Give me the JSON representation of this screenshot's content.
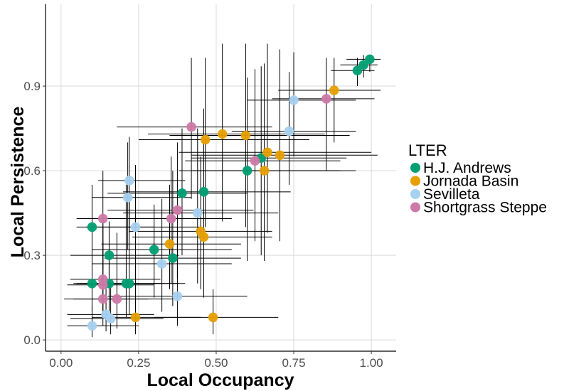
{
  "chart_data": {
    "type": "scatter",
    "xlabel": "Local Occupancy",
    "ylabel": "Local Persistence",
    "xlim": [
      -0.05,
      1.08
    ],
    "ylim": [
      -0.04,
      1.19
    ],
    "x_ticks": [
      0,
      0.25,
      0.5,
      0.75,
      1.0
    ],
    "x_tick_labels": [
      "0.00",
      "0.25",
      "0.50",
      "0.75",
      "1.00"
    ],
    "y_ticks": [
      0,
      0.3,
      0.6,
      0.9
    ],
    "y_tick_labels": [
      "0.0",
      "0.3",
      "0.6",
      "0.9"
    ],
    "grid": true,
    "legend": {
      "title": "LTER",
      "position": "right"
    },
    "series": [
      {
        "name": "H.J. Andrews",
        "color": "#009E73",
        "points": [
          {
            "x": 0.1,
            "y": 0.4,
            "xerr": [
              0.08,
              0.3
            ],
            "yerr": [
              0.3,
              0.55
            ]
          },
          {
            "x": 0.1,
            "y": 0.2,
            "xerr": [
              0.05,
              0.25
            ],
            "yerr": [
              0.1,
              0.3
            ]
          },
          {
            "x": 0.155,
            "y": 0.3,
            "xerr": [
              0.03,
              0.38
            ],
            "yerr": [
              0.2,
              0.42
            ]
          },
          {
            "x": 0.155,
            "y": 0.2,
            "xerr": [
              0.04,
              0.32
            ],
            "yerr": [
              0.1,
              0.32
            ]
          },
          {
            "x": 0.21,
            "y": 0.2,
            "xerr": [
              0.05,
              0.4
            ],
            "yerr": [
              0.08,
              0.55
            ]
          },
          {
            "x": 0.22,
            "y": 0.2,
            "xerr": [
              0.06,
              0.38
            ],
            "yerr": [
              0.09,
              0.52
            ]
          },
          {
            "x": 0.3,
            "y": 0.32,
            "xerr": [
              0.1,
              0.55
            ],
            "yerr": [
              0.15,
              0.48
            ]
          },
          {
            "x": 0.36,
            "y": 0.29,
            "xerr": [
              0.14,
              0.58
            ],
            "yerr": [
              0.12,
              0.6
            ]
          },
          {
            "x": 0.39,
            "y": 0.52,
            "xerr": [
              0.15,
              0.6
            ],
            "yerr": [
              0.3,
              0.75
            ]
          },
          {
            "x": 0.46,
            "y": 0.525,
            "xerr": [
              0.2,
              0.74
            ],
            "yerr": [
              0.18,
              0.82
            ]
          },
          {
            "x": 0.6,
            "y": 0.6,
            "xerr": [
              0.38,
              0.9
            ],
            "yerr": [
              0.28,
              0.93
            ]
          },
          {
            "x": 0.645,
            "y": 0.645,
            "xerr": [
              0.42,
              0.92
            ],
            "yerr": [
              0.3,
              0.97
            ]
          },
          {
            "x": 0.955,
            "y": 0.955,
            "xerr": [
              0.87,
              1.01
            ],
            "yerr": [
              0.9,
              1.0
            ]
          },
          {
            "x": 0.975,
            "y": 0.975,
            "xerr": [
              0.9,
              1.02
            ],
            "yerr": [
              0.93,
              1.01
            ]
          },
          {
            "x": 0.995,
            "y": 0.995,
            "xerr": [
              0.92,
              1.03
            ],
            "yerr": [
              0.95,
              1.01
            ]
          }
        ]
      },
      {
        "name": "Jornada Basin",
        "color": "#E69F00",
        "points": [
          {
            "x": 0.24,
            "y": 0.08,
            "xerr": [
              0.1,
              0.45
            ],
            "yerr": [
              0.02,
              0.2
            ]
          },
          {
            "x": 0.49,
            "y": 0.08,
            "xerr": [
              0.3,
              0.7
            ],
            "yerr": [
              0.02,
              0.18
            ]
          },
          {
            "x": 0.35,
            "y": 0.34,
            "xerr": [
              0.13,
              0.58
            ],
            "yerr": [
              0.18,
              0.55
            ]
          },
          {
            "x": 0.45,
            "y": 0.385,
            "xerr": [
              0.22,
              0.68
            ],
            "yerr": [
              0.18,
              0.65
            ]
          },
          {
            "x": 0.46,
            "y": 0.365,
            "xerr": [
              0.23,
              0.68
            ],
            "yerr": [
              0.15,
              0.62
            ]
          },
          {
            "x": 0.465,
            "y": 0.71,
            "xerr": [
              0.25,
              0.8
            ],
            "yerr": [
              0.4,
              1.0
            ]
          },
          {
            "x": 0.52,
            "y": 0.73,
            "xerr": [
              0.28,
              0.85
            ],
            "yerr": [
              0.42,
              1.05
            ]
          },
          {
            "x": 0.595,
            "y": 0.725,
            "xerr": [
              0.35,
              0.93
            ],
            "yerr": [
              0.4,
              1.05
            ]
          },
          {
            "x": 0.655,
            "y": 0.6,
            "xerr": [
              0.42,
              0.95
            ],
            "yerr": [
              0.28,
              0.98
            ]
          },
          {
            "x": 0.665,
            "y": 0.665,
            "xerr": [
              0.38,
              1.0
            ],
            "yerr": [
              0.38,
              1.05
            ]
          },
          {
            "x": 0.705,
            "y": 0.655,
            "xerr": [
              0.42,
              1.02
            ],
            "yerr": [
              0.35,
              1.03
            ]
          },
          {
            "x": 0.88,
            "y": 0.885,
            "xerr": [
              0.7,
              1.03
            ],
            "yerr": [
              0.7,
              1.0
            ]
          }
        ]
      },
      {
        "name": "Sevilleta",
        "color": "#A6D1F0",
        "points": [
          {
            "x": 0.1,
            "y": 0.05,
            "xerr": [
              0.02,
              0.25
            ],
            "yerr": [
              0.01,
              0.12
            ]
          },
          {
            "x": 0.145,
            "y": 0.09,
            "xerr": [
              0.02,
              0.3
            ],
            "yerr": [
              0.03,
              0.22
            ]
          },
          {
            "x": 0.16,
            "y": 0.075,
            "xerr": [
              0.03,
              0.33
            ],
            "yerr": [
              0.02,
              0.2
            ]
          },
          {
            "x": 0.22,
            "y": 0.565,
            "xerr": [
              0.12,
              0.4
            ],
            "yerr": [
              0.38,
              0.72
            ]
          },
          {
            "x": 0.215,
            "y": 0.505,
            "xerr": [
              0.1,
              0.42
            ],
            "yerr": [
              0.32,
              0.7
            ]
          },
          {
            "x": 0.24,
            "y": 0.4,
            "xerr": [
              0.05,
              0.45
            ],
            "yerr": [
              0.18,
              0.62
            ]
          },
          {
            "x": 0.325,
            "y": 0.27,
            "xerr": [
              0.1,
              0.55
            ],
            "yerr": [
              0.1,
              0.5
            ]
          },
          {
            "x": 0.375,
            "y": 0.155,
            "xerr": [
              0.15,
              0.6
            ],
            "yerr": [
              0.05,
              0.4
            ]
          },
          {
            "x": 0.44,
            "y": 0.45,
            "xerr": [
              0.2,
              0.7
            ],
            "yerr": [
              0.2,
              0.75
            ]
          },
          {
            "x": 0.735,
            "y": 0.74,
            "xerr": [
              0.55,
              0.95
            ],
            "yerr": [
              0.55,
              0.95
            ]
          },
          {
            "x": 0.75,
            "y": 0.85,
            "xerr": [
              0.6,
              0.95
            ],
            "yerr": [
              0.65,
              1.02
            ]
          }
        ]
      },
      {
        "name": "Shortgrass Steppe",
        "color": "#CC79A7",
        "points": [
          {
            "x": 0.135,
            "y": 0.43,
            "xerr": [
              0.05,
              0.35
            ],
            "yerr": [
              0.25,
              0.6
            ]
          },
          {
            "x": 0.135,
            "y": 0.215,
            "xerr": [
              0.03,
              0.32
            ],
            "yerr": [
              0.1,
              0.42
            ]
          },
          {
            "x": 0.135,
            "y": 0.195,
            "xerr": [
              0.02,
              0.3
            ],
            "yerr": [
              0.08,
              0.4
            ]
          },
          {
            "x": 0.135,
            "y": 0.145,
            "xerr": [
              0.01,
              0.28
            ],
            "yerr": [
              0.05,
              0.35
            ]
          },
          {
            "x": 0.18,
            "y": 0.145,
            "xerr": [
              0.04,
              0.36
            ],
            "yerr": [
              0.04,
              0.38
            ]
          },
          {
            "x": 0.355,
            "y": 0.43,
            "xerr": [
              0.15,
              0.55
            ],
            "yerr": [
              0.2,
              0.65
            ]
          },
          {
            "x": 0.375,
            "y": 0.46,
            "xerr": [
              0.15,
              0.62
            ],
            "yerr": [
              0.22,
              0.7
            ]
          },
          {
            "x": 0.42,
            "y": 0.755,
            "xerr": [
              0.18,
              0.68
            ],
            "yerr": [
              0.5,
              1.0
            ]
          },
          {
            "x": 0.625,
            "y": 0.635,
            "xerr": [
              0.4,
              0.9
            ],
            "yerr": [
              0.35,
              0.96
            ]
          },
          {
            "x": 0.855,
            "y": 0.855,
            "xerr": [
              0.68,
              1.01
            ],
            "yerr": [
              0.6,
              1.0
            ]
          }
        ]
      }
    ]
  }
}
